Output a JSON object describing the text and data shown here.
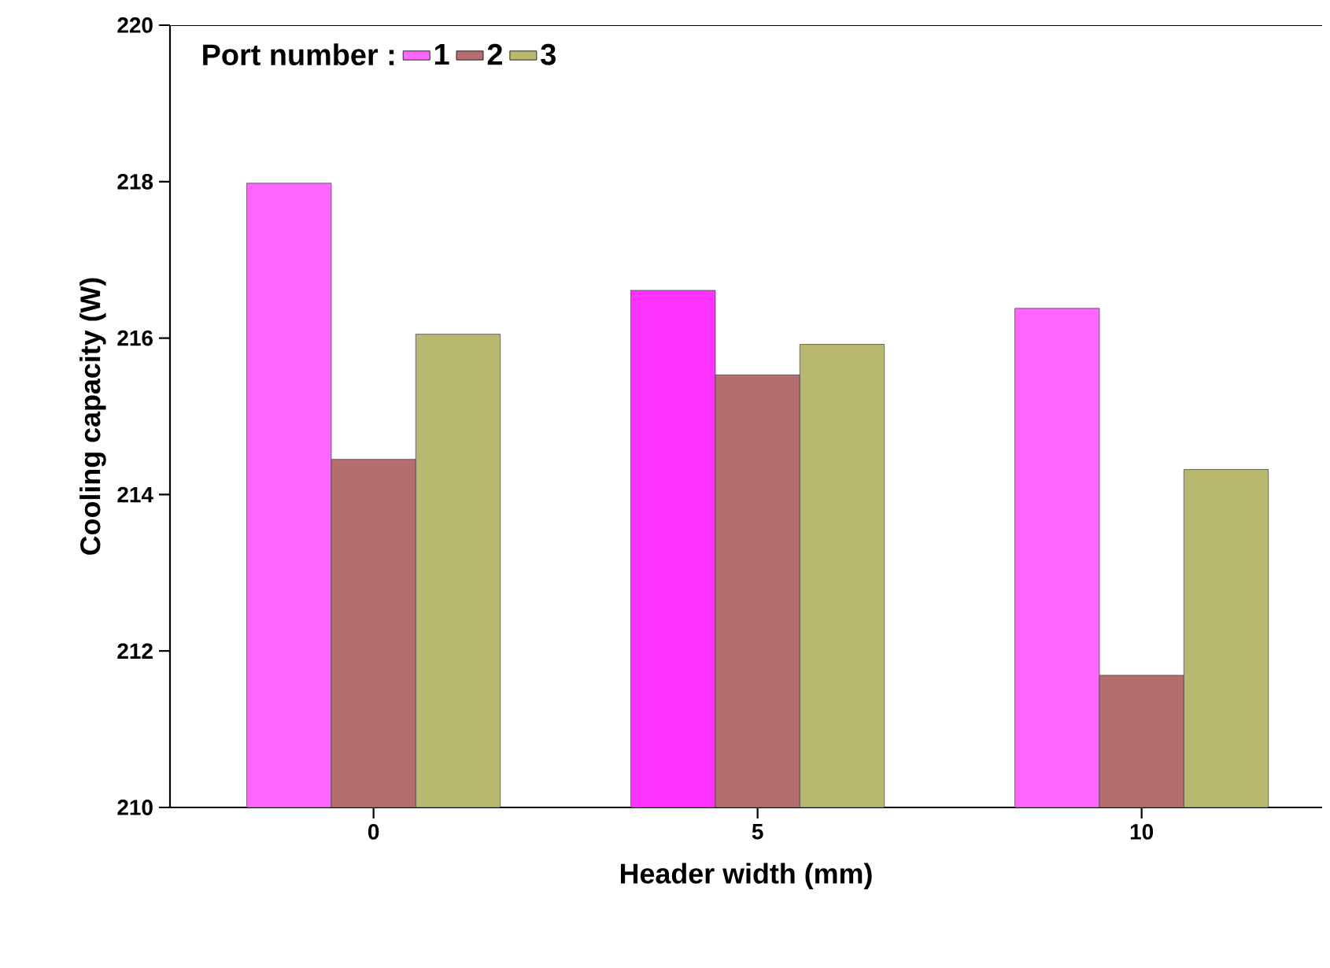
{
  "chart_data": {
    "type": "bar",
    "xlabel": "Header width (mm)",
    "ylabel": "Cooling capacity (W)",
    "legend_title": "Port number :",
    "categories": [
      "0",
      "5",
      "10"
    ],
    "series": [
      {
        "name": "1",
        "color": "#ff66ff",
        "colors": [
          "#ff66ff",
          "#ff33ff",
          "#ff66ff"
        ],
        "values": [
          217.98,
          216.61,
          216.38
        ]
      },
      {
        "name": "2",
        "color": "#b56d6d",
        "values": [
          214.45,
          215.53,
          211.69
        ]
      },
      {
        "name": "3",
        "color": "#b8b86e",
        "values": [
          216.05,
          215.92,
          214.32
        ]
      }
    ],
    "ylim": [
      210,
      220
    ],
    "yticks": [
      210,
      212,
      214,
      216,
      218,
      220
    ],
    "grid": false,
    "legend": "top left"
  }
}
